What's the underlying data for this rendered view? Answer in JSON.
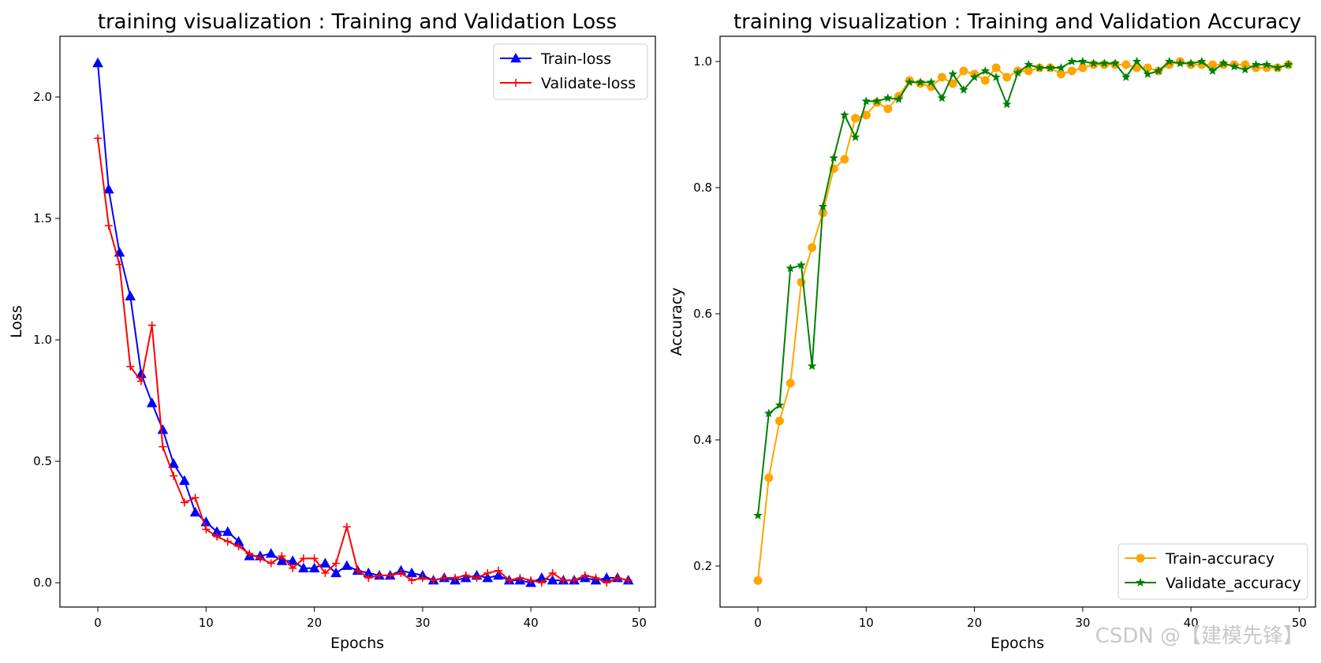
{
  "chart_data": [
    {
      "type": "line",
      "title": "training visualization : Training and Validation Loss",
      "xlabel": "Epochs",
      "ylabel": "Loss",
      "xlim": [
        -3.5,
        51.5
      ],
      "ylim": [
        -0.1,
        2.25
      ],
      "xticks": [
        0,
        10,
        20,
        30,
        40,
        50
      ],
      "yticks": [
        0.0,
        0.5,
        1.0,
        1.5,
        2.0
      ],
      "ytick_labels": [
        "0.0",
        "0.5",
        "1.0",
        "1.5",
        "2.0"
      ],
      "legend_position": "top-right",
      "series": [
        {
          "name": "Train-loss",
          "color": "#0000ff",
          "marker": "triangle",
          "values": [
            2.14,
            1.62,
            1.36,
            1.18,
            0.86,
            0.74,
            0.63,
            0.49,
            0.42,
            0.29,
            0.25,
            0.21,
            0.21,
            0.17,
            0.11,
            0.11,
            0.12,
            0.09,
            0.09,
            0.06,
            0.06,
            0.08,
            0.04,
            0.07,
            0.05,
            0.04,
            0.03,
            0.03,
            0.05,
            0.04,
            0.03,
            0.01,
            0.02,
            0.01,
            0.02,
            0.03,
            0.02,
            0.03,
            0.01,
            0.01,
            0.0,
            0.02,
            0.01,
            0.01,
            0.01,
            0.02,
            0.01,
            0.02,
            0.02,
            0.01
          ]
        },
        {
          "name": "Validate-loss",
          "color": "#ff0000",
          "marker": "plus",
          "values": [
            1.83,
            1.47,
            1.31,
            0.89,
            0.83,
            1.06,
            0.56,
            0.44,
            0.33,
            0.35,
            0.22,
            0.19,
            0.17,
            0.15,
            0.12,
            0.1,
            0.08,
            0.11,
            0.06,
            0.1,
            0.1,
            0.04,
            0.08,
            0.23,
            0.05,
            0.02,
            0.03,
            0.03,
            0.04,
            0.01,
            0.02,
            0.01,
            0.02,
            0.02,
            0.03,
            0.02,
            0.04,
            0.05,
            0.01,
            0.02,
            0.01,
            0.0,
            0.04,
            0.01,
            0.01,
            0.03,
            0.02,
            0.0,
            0.02,
            0.01
          ]
        }
      ]
    },
    {
      "type": "line",
      "title": "training visualization : Training and Validation Accuracy",
      "xlabel": "Epochs",
      "ylabel": "Accuracy",
      "xlim": [
        -3.5,
        51.5
      ],
      "ylim": [
        0.135,
        1.04
      ],
      "xticks": [
        0,
        10,
        20,
        30,
        40,
        50
      ],
      "yticks": [
        0.2,
        0.4,
        0.6,
        0.8,
        1.0
      ],
      "ytick_labels": [
        "0.2",
        "0.4",
        "0.6",
        "0.8",
        "1.0"
      ],
      "legend_position": "bottom-right",
      "series": [
        {
          "name": "Train-accuracy",
          "color": "#ffa500",
          "marker": "circle",
          "values": [
            0.177,
            0.34,
            0.43,
            0.49,
            0.65,
            0.705,
            0.76,
            0.83,
            0.845,
            0.91,
            0.915,
            0.935,
            0.925,
            0.945,
            0.97,
            0.965,
            0.96,
            0.975,
            0.965,
            0.985,
            0.98,
            0.97,
            0.99,
            0.975,
            0.985,
            0.985,
            0.99,
            0.99,
            0.98,
            0.985,
            0.99,
            0.995,
            0.995,
            0.995,
            0.995,
            0.99,
            0.99,
            0.985,
            0.995,
            1.0,
            0.995,
            0.995,
            0.995,
            0.995,
            0.995,
            0.995,
            0.99,
            0.99,
            0.99,
            0.995
          ]
        },
        {
          "name": "Validate_accuracy",
          "color": "#008000",
          "marker": "star",
          "values": [
            0.28,
            0.442,
            0.455,
            0.672,
            0.677,
            0.517,
            0.77,
            0.847,
            0.915,
            0.88,
            0.937,
            0.937,
            0.942,
            0.94,
            0.967,
            0.967,
            0.967,
            0.942,
            0.98,
            0.955,
            0.975,
            0.985,
            0.975,
            0.932,
            0.982,
            0.995,
            0.99,
            0.99,
            0.99,
            1.0,
            1.0,
            0.997,
            0.997,
            0.997,
            0.975,
            1.0,
            0.98,
            0.985,
            1.0,
            0.997,
            0.997,
            1.0,
            0.985,
            0.997,
            0.992,
            0.987,
            0.995,
            0.995,
            0.99,
            0.995
          ]
        }
      ]
    }
  ],
  "watermark": "CSDN @【建模先锋】"
}
